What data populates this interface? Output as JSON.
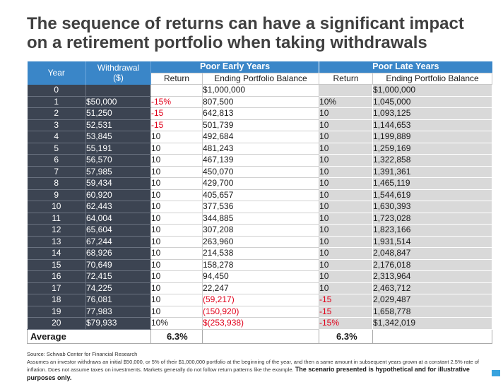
{
  "title_line1": "The sequence of returns can have a significant impact",
  "title_line2": "on a retirement portfolio when taking withdrawals",
  "headers": {
    "year": "Year",
    "withdrawal_line1": "Withdrawal",
    "withdrawal_line2": "($)",
    "poor_early": "Poor Early Years",
    "poor_late": "Poor Late Years",
    "return": "Return",
    "ending_balance": "Ending Portfolio Balance"
  },
  "rows": [
    {
      "year": "0",
      "withdrawal": "",
      "early_return": "",
      "early_balance": "$1,000,000",
      "late_return": "",
      "late_balance": "$1,000,000",
      "early_red": false,
      "early_bal_red": false,
      "late_red": false
    },
    {
      "year": "1",
      "withdrawal": "$50,000",
      "early_return": "-15%",
      "early_balance": "807,500",
      "late_return": "10%",
      "late_balance": "1,045,000",
      "early_red": true,
      "early_bal_red": false,
      "late_red": false
    },
    {
      "year": "2",
      "withdrawal": "51,250",
      "early_return": "-15",
      "early_balance": "642,813",
      "late_return": "10",
      "late_balance": "1,093,125",
      "early_red": true,
      "early_bal_red": false,
      "late_red": false
    },
    {
      "year": "3",
      "withdrawal": "52,531",
      "early_return": "-15",
      "early_balance": "501,739",
      "late_return": "10",
      "late_balance": "1,144,653",
      "early_red": true,
      "early_bal_red": false,
      "late_red": false
    },
    {
      "year": "4",
      "withdrawal": "53,845",
      "early_return": "10",
      "early_balance": "492,684",
      "late_return": "10",
      "late_balance": "1,199,889",
      "early_red": false,
      "early_bal_red": false,
      "late_red": false
    },
    {
      "year": "5",
      "withdrawal": "55,191",
      "early_return": "10",
      "early_balance": "481,243",
      "late_return": "10",
      "late_balance": "1,259,169",
      "early_red": false,
      "early_bal_red": false,
      "late_red": false
    },
    {
      "year": "6",
      "withdrawal": "56,570",
      "early_return": "10",
      "early_balance": "467,139",
      "late_return": "10",
      "late_balance": "1,322,858",
      "early_red": false,
      "early_bal_red": false,
      "late_red": false
    },
    {
      "year": "7",
      "withdrawal": "57,985",
      "early_return": "10",
      "early_balance": "450,070",
      "late_return": "10",
      "late_balance": "1,391,361",
      "early_red": false,
      "early_bal_red": false,
      "late_red": false
    },
    {
      "year": "8",
      "withdrawal": "59,434",
      "early_return": "10",
      "early_balance": "429,700",
      "late_return": "10",
      "late_balance": "1,465,119",
      "early_red": false,
      "early_bal_red": false,
      "late_red": false
    },
    {
      "year": "9",
      "withdrawal": "60,920",
      "early_return": "10",
      "early_balance": "405,657",
      "late_return": "10",
      "late_balance": "1,544,619",
      "early_red": false,
      "early_bal_red": false,
      "late_red": false
    },
    {
      "year": "10",
      "withdrawal": "62,443",
      "early_return": "10",
      "early_balance": "377,536",
      "late_return": "10",
      "late_balance": "1,630,393",
      "early_red": false,
      "early_bal_red": false,
      "late_red": false
    },
    {
      "year": "11",
      "withdrawal": "64,004",
      "early_return": "10",
      "early_balance": "344,885",
      "late_return": "10",
      "late_balance": "1,723,028",
      "early_red": false,
      "early_bal_red": false,
      "late_red": false
    },
    {
      "year": "12",
      "withdrawal": "65,604",
      "early_return": "10",
      "early_balance": "307,208",
      "late_return": "10",
      "late_balance": "1,823,166",
      "early_red": false,
      "early_bal_red": false,
      "late_red": false
    },
    {
      "year": "13",
      "withdrawal": "67,244",
      "early_return": "10",
      "early_balance": "263,960",
      "late_return": "10",
      "late_balance": "1,931,514",
      "early_red": false,
      "early_bal_red": false,
      "late_red": false
    },
    {
      "year": "14",
      "withdrawal": "68,926",
      "early_return": "10",
      "early_balance": "214,538",
      "late_return": "10",
      "late_balance": "2,048,847",
      "early_red": false,
      "early_bal_red": false,
      "late_red": false
    },
    {
      "year": "15",
      "withdrawal": "70,649",
      "early_return": "10",
      "early_balance": "158,278",
      "late_return": "10",
      "late_balance": "2,176,018",
      "early_red": false,
      "early_bal_red": false,
      "late_red": false
    },
    {
      "year": "16",
      "withdrawal": "72,415",
      "early_return": "10",
      "early_balance": "94,450",
      "late_return": "10",
      "late_balance": "2,313,964",
      "early_red": false,
      "early_bal_red": false,
      "late_red": false
    },
    {
      "year": "17",
      "withdrawal": "74,225",
      "early_return": "10",
      "early_balance": "22,247",
      "late_return": "10",
      "late_balance": "2,463,712",
      "early_red": false,
      "early_bal_red": false,
      "late_red": false
    },
    {
      "year": "18",
      "withdrawal": "76,081",
      "early_return": "10",
      "early_balance": "(59,217)",
      "late_return": "-15",
      "late_balance": "2,029,487",
      "early_red": false,
      "early_bal_red": true,
      "late_red": true
    },
    {
      "year": "19",
      "withdrawal": "77,983",
      "early_return": "10",
      "early_balance": "(150,920)",
      "late_return": "-15",
      "late_balance": "1,658,778",
      "early_red": false,
      "early_bal_red": true,
      "late_red": true
    },
    {
      "year": "20",
      "withdrawal": "$79,933",
      "early_return": "10%",
      "early_balance": "$(253,938)",
      "late_return": "-15%",
      "late_balance": "$1,342,019",
      "early_red": false,
      "early_bal_red": true,
      "late_red": true
    }
  ],
  "average": {
    "label": "Average",
    "early": "6.3%",
    "late": "6.3%"
  },
  "footer": {
    "source": "Source: Schwab Center for Financial Research",
    "note": "Assumes an investor withdraws an initial $50,000, or 5% of their $1,000,000 portfolio at the beginning of the year, and then a same amount in subsequent years grown at a constant 2.5% rate of inflation. Does not assume taxes on investments. Markets generally do not follow return patterns like the example.",
    "emphasis": "The scenario presented is hypothetical and for illustrative purposes only."
  },
  "colors": {
    "header_blue": "#3a86c8",
    "dark_col": "#3c4452",
    "negative_red": "#e0001a",
    "late_bg": "#d9d9d9"
  }
}
